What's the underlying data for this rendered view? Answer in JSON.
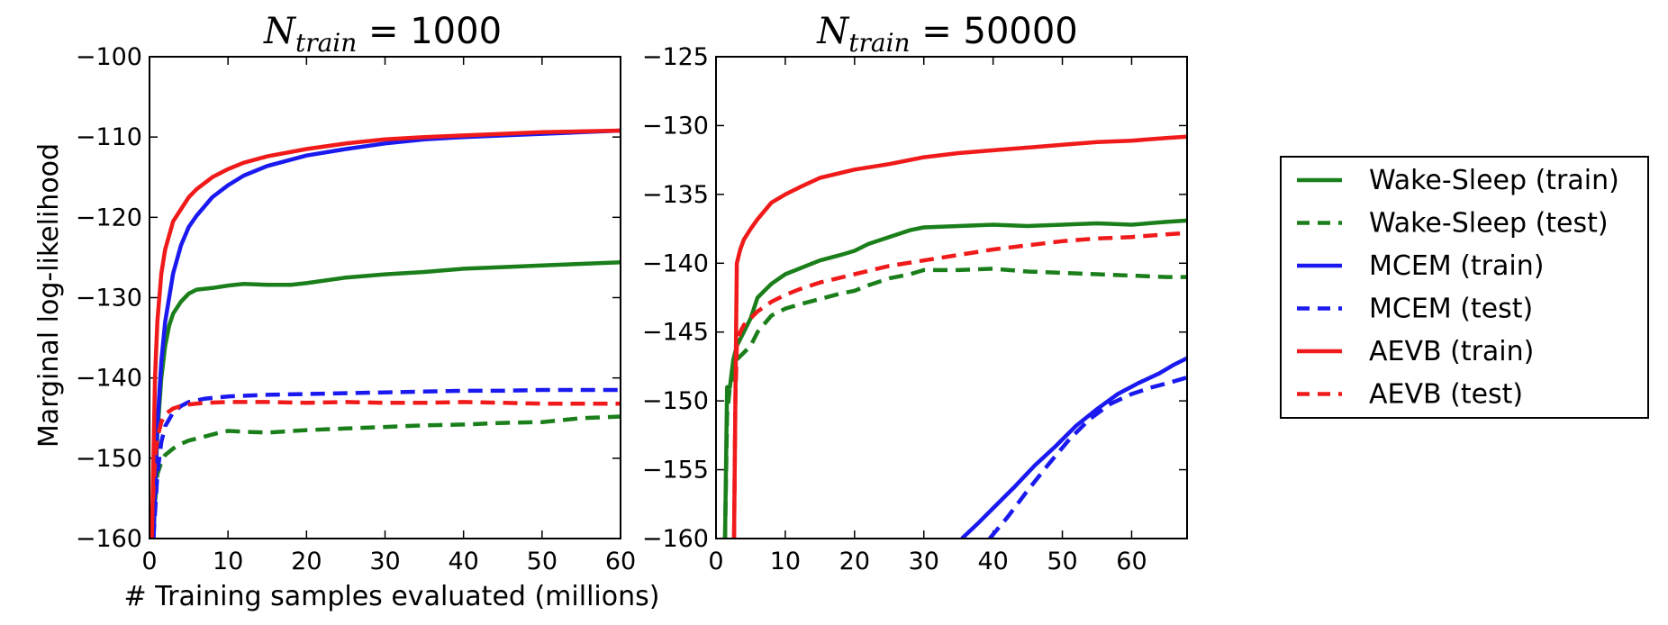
{
  "figure": {
    "ylabel": "Marginal log-likelihood",
    "xlabel": "# Training samples evaluated (millions)"
  },
  "colors": {
    "wake_sleep": "#1a7f1a",
    "mcem": "#1a1af0",
    "aevb": "#f01a1a"
  },
  "legend": {
    "placement": "right",
    "entries": [
      {
        "label": "Wake-Sleep (train)",
        "color": "#1a7f1a",
        "style": "solid"
      },
      {
        "label": "Wake-Sleep (test)",
        "color": "#1a7f1a",
        "style": "dashed"
      },
      {
        "label": "MCEM (train)",
        "color": "#1a1af0",
        "style": "solid"
      },
      {
        "label": "MCEM (test)",
        "color": "#1a1af0",
        "style": "dashed"
      },
      {
        "label": "AEVB (train)",
        "color": "#f01a1a",
        "style": "solid"
      },
      {
        "label": "AEVB (test)",
        "color": "#f01a1a",
        "style": "dashed"
      }
    ]
  },
  "chart_data": [
    {
      "type": "line",
      "title_var": "N",
      "title_sub": "train",
      "title_rest": " = 1000",
      "xlim": [
        0,
        60
      ],
      "ylim": [
        -160,
        -100
      ],
      "xticks": [
        "0",
        "10",
        "20",
        "30",
        "40",
        "50",
        "60"
      ],
      "yticks": [
        "−160",
        "−150",
        "−140",
        "−130",
        "−120",
        "−110",
        "−100"
      ],
      "grid": false,
      "series": [
        {
          "name": "Wake-Sleep (train)",
          "color": "#1a7f1a",
          "style": "solid",
          "x": [
            0.5,
            1,
            1.5,
            2,
            2.5,
            3,
            4,
            5,
            6,
            8,
            10,
            12,
            15,
            18,
            20,
            25,
            30,
            35,
            40,
            45,
            50,
            55,
            60
          ],
          "y": [
            -160,
            -147,
            -140,
            -136,
            -133.5,
            -132,
            -130.5,
            -129.5,
            -129,
            -128.8,
            -128.5,
            -128.3,
            -128.4,
            -128.4,
            -128.2,
            -127.5,
            -127.1,
            -126.8,
            -126.4,
            -126.2,
            -126.0,
            -125.8,
            -125.6
          ]
        },
        {
          "name": "Wake-Sleep (test)",
          "color": "#1a7f1a",
          "style": "dashed",
          "x": [
            0.5,
            1,
            1.5,
            2,
            3,
            4,
            5,
            7,
            9,
            10,
            12,
            15,
            20,
            25,
            30,
            35,
            40,
            45,
            50,
            55,
            60
          ],
          "y": [
            -158,
            -152,
            -150.5,
            -149.6,
            -148.8,
            -148.2,
            -147.8,
            -147.3,
            -146.8,
            -146.6,
            -146.7,
            -146.8,
            -146.5,
            -146.3,
            -146.1,
            -145.9,
            -145.8,
            -145.6,
            -145.5,
            -145.0,
            -144.8
          ]
        },
        {
          "name": "MCEM (train)",
          "color": "#1a1af0",
          "style": "solid",
          "x": [
            0.5,
            1,
            1.5,
            2,
            3,
            4,
            5,
            6,
            8,
            10,
            12,
            15,
            20,
            25,
            30,
            35,
            40,
            45,
            50,
            55,
            60
          ],
          "y": [
            -160,
            -146,
            -138,
            -133,
            -127,
            -123.5,
            -121.2,
            -119.8,
            -117.5,
            -116,
            -114.8,
            -113.6,
            -112.3,
            -111.5,
            -110.8,
            -110.3,
            -110.0,
            -109.8,
            -109.6,
            -109.4,
            -109.2
          ]
        },
        {
          "name": "MCEM (test)",
          "color": "#1a1af0",
          "style": "dashed",
          "x": [
            0.5,
            1,
            1.5,
            2,
            3,
            4,
            5,
            7,
            10,
            15,
            20,
            25,
            30,
            35,
            40,
            45,
            50,
            55,
            60
          ],
          "y": [
            -160,
            -152,
            -148,
            -146,
            -144.3,
            -143.5,
            -143.0,
            -142.6,
            -142.3,
            -142.1,
            -142.0,
            -141.9,
            -141.8,
            -141.7,
            -141.6,
            -141.6,
            -141.5,
            -141.5,
            -141.5
          ]
        },
        {
          "name": "AEVB (train)",
          "color": "#f01a1a",
          "style": "solid",
          "x": [
            0.3,
            0.7,
            1,
            1.5,
            2,
            3,
            4,
            5,
            6,
            8,
            10,
            12,
            15,
            20,
            25,
            30,
            35,
            40,
            45,
            50,
            55,
            60
          ],
          "y": [
            -160,
            -140,
            -133,
            -127,
            -124,
            -120.5,
            -119,
            -117.5,
            -116.5,
            -115,
            -114,
            -113.2,
            -112.4,
            -111.5,
            -110.8,
            -110.3,
            -110.0,
            -109.8,
            -109.6,
            -109.4,
            -109.3,
            -109.2
          ]
        },
        {
          "name": "AEVB (test)",
          "color": "#f01a1a",
          "style": "dashed",
          "x": [
            0.3,
            0.7,
            1,
            1.5,
            2,
            3,
            4,
            5,
            7,
            10,
            15,
            20,
            25,
            30,
            35,
            40,
            45,
            50,
            55,
            60
          ],
          "y": [
            -158,
            -150,
            -147.5,
            -145.5,
            -144.5,
            -143.8,
            -143.5,
            -143.3,
            -143.1,
            -143.0,
            -143.0,
            -143.1,
            -143.0,
            -143.1,
            -143.1,
            -143.0,
            -143.1,
            -143.2,
            -143.2,
            -143.2
          ]
        }
      ]
    },
    {
      "type": "line",
      "title_var": "N",
      "title_sub": "train",
      "title_rest": " = 50000",
      "xlim": [
        0,
        68
      ],
      "ylim": [
        -160,
        -125
      ],
      "xticks": [
        "0",
        "10",
        "20",
        "30",
        "40",
        "50",
        "60"
      ],
      "xtick_values": [
        0,
        10,
        20,
        30,
        40,
        50,
        60
      ],
      "yticks": [
        "−160",
        "−155",
        "−150",
        "−145",
        "−140",
        "−135",
        "−130",
        "−125"
      ],
      "grid": false,
      "series": [
        {
          "name": "Wake-Sleep (train)",
          "color": "#1a7f1a",
          "style": "solid",
          "x": [
            1.3,
            1.6,
            2,
            2.5,
            3,
            4,
            5,
            6,
            8,
            10,
            12,
            15,
            18,
            20,
            22,
            25,
            28,
            30,
            35,
            40,
            45,
            50,
            55,
            60,
            65,
            68
          ],
          "y": [
            -160,
            -149,
            -149,
            -147,
            -146,
            -145,
            -144,
            -142.5,
            -141.5,
            -140.8,
            -140.4,
            -139.8,
            -139.4,
            -139.1,
            -138.6,
            -138.1,
            -137.6,
            -137.4,
            -137.3,
            -137.2,
            -137.3,
            -137.2,
            -137.1,
            -137.2,
            -137.0,
            -136.9
          ]
        },
        {
          "name": "Wake-Sleep (test)",
          "color": "#1a7f1a",
          "style": "dashed",
          "x": [
            1.3,
            1.6,
            2,
            2.5,
            3,
            4,
            5,
            6,
            8,
            10,
            12,
            15,
            18,
            20,
            22,
            25,
            28,
            30,
            35,
            40,
            45,
            50,
            55,
            60,
            65,
            68
          ],
          "y": [
            -160,
            -151,
            -149,
            -148,
            -147,
            -146.5,
            -146,
            -145,
            -143.8,
            -143.3,
            -143.0,
            -142.6,
            -142.2,
            -142.0,
            -141.6,
            -141.1,
            -140.8,
            -140.5,
            -140.5,
            -140.4,
            -140.6,
            -140.7,
            -140.8,
            -140.9,
            -141.0,
            -141.0
          ]
        },
        {
          "name": "MCEM (train)",
          "color": "#1a1af0",
          "style": "solid",
          "x": [
            35.5,
            38,
            40,
            43,
            46,
            49,
            52,
            55,
            58,
            61,
            64,
            66,
            68
          ],
          "y": [
            -160,
            -158.8,
            -157.8,
            -156.3,
            -154.7,
            -153.3,
            -151.8,
            -150.6,
            -149.5,
            -148.7,
            -148.0,
            -147.4,
            -146.9
          ]
        },
        {
          "name": "MCEM (test)",
          "color": "#1a1af0",
          "style": "dashed",
          "x": [
            39.5,
            42,
            45,
            48,
            51,
            54,
            57,
            60,
            63,
            66,
            68
          ],
          "y": [
            -160,
            -158.5,
            -156.5,
            -154.6,
            -152.8,
            -151.3,
            -150.2,
            -149.5,
            -149.0,
            -148.6,
            -148.3
          ]
        },
        {
          "name": "AEVB (train)",
          "color": "#f01a1a",
          "style": "solid",
          "x": [
            2.6,
            2.8,
            3,
            3.5,
            4,
            5,
            6,
            8,
            10,
            12,
            15,
            20,
            25,
            30,
            35,
            40,
            45,
            50,
            55,
            60,
            65,
            68
          ],
          "y": [
            -160,
            -150,
            -140,
            -139,
            -138.3,
            -137.5,
            -136.8,
            -135.6,
            -135.0,
            -134.5,
            -133.8,
            -133.2,
            -132.8,
            -132.3,
            -132.0,
            -131.8,
            -131.6,
            -131.4,
            -131.2,
            -131.1,
            -130.9,
            -130.8
          ]
        },
        {
          "name": "AEVB (test)",
          "color": "#f01a1a",
          "style": "dashed",
          "x": [
            2.6,
            2.8,
            3,
            3.5,
            4,
            5,
            6,
            8,
            10,
            12,
            15,
            20,
            25,
            30,
            35,
            40,
            45,
            50,
            55,
            60,
            65,
            68
          ],
          "y": [
            -160,
            -150,
            -146,
            -145,
            -144.5,
            -144,
            -143.5,
            -142.8,
            -142.3,
            -141.9,
            -141.4,
            -140.8,
            -140.2,
            -139.8,
            -139.4,
            -139.0,
            -138.7,
            -138.4,
            -138.2,
            -138.1,
            -137.9,
            -137.8
          ]
        }
      ]
    }
  ]
}
